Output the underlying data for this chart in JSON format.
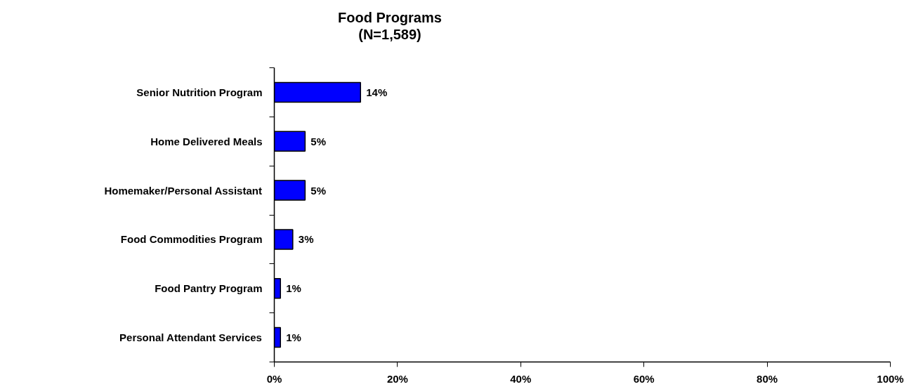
{
  "chart_data": {
    "type": "bar",
    "orientation": "horizontal",
    "title": "Food Programs\n(N=1,589)",
    "categories": [
      "Senior Nutrition Program",
      "Home Delivered Meals",
      "Homemaker/Personal Assistant",
      "Food Commodities Program",
      "Food Pantry Program",
      "Personal Attendant Services"
    ],
    "values": [
      14,
      5,
      5,
      3,
      1,
      1
    ],
    "value_labels": [
      "14%",
      "5%",
      "5%",
      "3%",
      "1%",
      "1%"
    ],
    "color": "#0000ff",
    "xlim": [
      0,
      100
    ],
    "xticks": [
      {
        "value": 0,
        "label": "0%"
      },
      {
        "value": 20,
        "label": "20%"
      },
      {
        "value": 40,
        "label": "40%"
      },
      {
        "value": 60,
        "label": "60%"
      },
      {
        "value": 80,
        "label": "80%"
      },
      {
        "value": 100,
        "label": "100%"
      }
    ],
    "grid": false
  }
}
